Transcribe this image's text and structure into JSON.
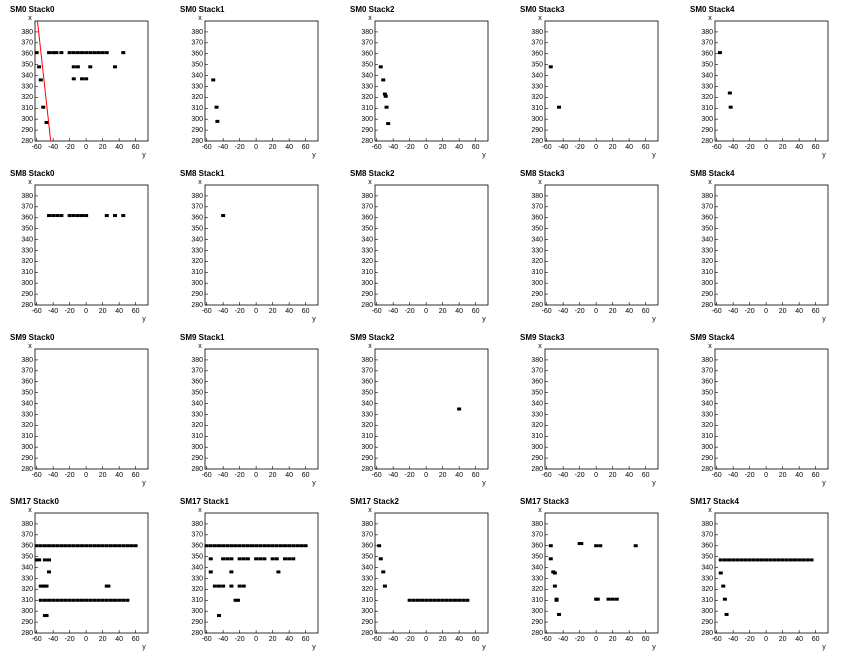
{
  "chart_data": [
    {
      "type": "scatter",
      "title": "SM0 Stack0",
      "x_label": "y",
      "y_label": "x",
      "xlim": [
        -62,
        75
      ],
      "ylim": [
        280,
        390
      ],
      "xticks": [
        -60,
        -40,
        -20,
        0,
        20,
        40,
        60
      ],
      "yticks": [
        280,
        290,
        300,
        310,
        320,
        330,
        340,
        350,
        360,
        370,
        380
      ],
      "color": "#000000",
      "x": [
        -60,
        -45,
        -40,
        -36,
        -30,
        -20,
        -15,
        -10,
        -5,
        0,
        5,
        10,
        15,
        20,
        25,
        45,
        -57,
        -15,
        -10,
        5,
        35,
        -55,
        -15,
        -5,
        0,
        -52,
        -48
      ],
      "values": [
        361,
        361,
        361,
        361,
        361,
        361,
        361,
        361,
        361,
        361,
        361,
        361,
        361,
        361,
        361,
        361,
        348,
        348,
        348,
        348,
        348,
        336,
        337,
        337,
        337,
        311,
        297
      ],
      "fit_line": {
        "x": [
          -59,
          -43
        ],
        "values": [
          390,
          280
        ],
        "color": "#ff0000"
      }
    },
    {
      "type": "scatter",
      "title": "SM0 Stack1",
      "x_label": "y",
      "y_label": "x",
      "xlim": [
        -62,
        75
      ],
      "ylim": [
        280,
        390
      ],
      "xticks": [
        -60,
        -40,
        -20,
        0,
        20,
        40,
        60
      ],
      "yticks": [
        280,
        290,
        300,
        310,
        320,
        330,
        340,
        350,
        360,
        370,
        380
      ],
      "color": "#000000",
      "x": [
        -52,
        -48,
        -47
      ],
      "values": [
        336,
        311,
        298
      ]
    },
    {
      "type": "scatter",
      "title": "SM0 Stack2",
      "x_label": "y",
      "y_label": "x",
      "xlim": [
        -62,
        75
      ],
      "ylim": [
        280,
        390
      ],
      "xticks": [
        -60,
        -40,
        -20,
        0,
        20,
        40,
        60
      ],
      "yticks": [
        280,
        290,
        300,
        310,
        320,
        330,
        340,
        350,
        360,
        370,
        380
      ],
      "color": "#000000",
      "x": [
        -55,
        -52,
        -50,
        -49,
        -48,
        -46
      ],
      "values": [
        348,
        336,
        323,
        321,
        311,
        296
      ]
    },
    {
      "type": "scatter",
      "title": "SM0 Stack3",
      "x_label": "y",
      "y_label": "x",
      "xlim": [
        -62,
        75
      ],
      "ylim": [
        280,
        390
      ],
      "xticks": [
        -60,
        -40,
        -20,
        0,
        20,
        40,
        60
      ],
      "yticks": [
        280,
        290,
        300,
        310,
        320,
        330,
        340,
        350,
        360,
        370,
        380
      ],
      "color": "#000000",
      "x": [
        -55,
        -45
      ],
      "values": [
        348,
        311
      ]
    },
    {
      "type": "scatter",
      "title": "SM0 Stack4",
      "x_label": "y",
      "y_label": "x",
      "xlim": [
        -62,
        75
      ],
      "ylim": [
        280,
        390
      ],
      "xticks": [
        -60,
        -40,
        -20,
        0,
        20,
        40,
        60
      ],
      "yticks": [
        280,
        290,
        300,
        310,
        320,
        330,
        340,
        350,
        360,
        370,
        380
      ],
      "color": "#000000",
      "x": [
        -56,
        -44,
        -43
      ],
      "values": [
        361,
        324,
        311
      ]
    },
    {
      "type": "scatter",
      "title": "SM8 Stack0",
      "x_label": "y",
      "y_label": "x",
      "xlim": [
        -62,
        75
      ],
      "ylim": [
        280,
        390
      ],
      "xticks": [
        -60,
        -40,
        -20,
        0,
        20,
        40,
        60
      ],
      "yticks": [
        280,
        290,
        300,
        310,
        320,
        330,
        340,
        350,
        360,
        370,
        380
      ],
      "color": "#000000",
      "x": [
        -45,
        -40,
        -35,
        -30,
        -20,
        -15,
        -10,
        -5,
        0,
        25,
        35,
        45
      ],
      "values": [
        362,
        362,
        362,
        362,
        362,
        362,
        362,
        362,
        362,
        362,
        362,
        362
      ]
    },
    {
      "type": "scatter",
      "title": "SM8 Stack1",
      "x_label": "y",
      "y_label": "x",
      "xlim": [
        -62,
        75
      ],
      "ylim": [
        280,
        390
      ],
      "xticks": [
        -60,
        -40,
        -20,
        0,
        20,
        40,
        60
      ],
      "yticks": [
        280,
        290,
        300,
        310,
        320,
        330,
        340,
        350,
        360,
        370,
        380
      ],
      "color": "#000000",
      "x": [
        -40
      ],
      "values": [
        362
      ]
    },
    {
      "type": "scatter",
      "title": "SM8 Stack2",
      "x_label": "y",
      "y_label": "x",
      "xlim": [
        -62,
        75
      ],
      "ylim": [
        280,
        390
      ],
      "xticks": [
        -60,
        -40,
        -20,
        0,
        20,
        40,
        60
      ],
      "yticks": [
        280,
        290,
        300,
        310,
        320,
        330,
        340,
        350,
        360,
        370,
        380
      ],
      "color": "#000000",
      "x": [],
      "values": []
    },
    {
      "type": "scatter",
      "title": "SM8 Stack3",
      "x_label": "y",
      "y_label": "x",
      "xlim": [
        -62,
        75
      ],
      "ylim": [
        280,
        390
      ],
      "xticks": [
        -60,
        -40,
        -20,
        0,
        20,
        40,
        60
      ],
      "yticks": [
        280,
        290,
        300,
        310,
        320,
        330,
        340,
        350,
        360,
        370,
        380
      ],
      "color": "#000000",
      "x": [],
      "values": []
    },
    {
      "type": "scatter",
      "title": "SM8 Stack4",
      "x_label": "y",
      "y_label": "x",
      "xlim": [
        -62,
        75
      ],
      "ylim": [
        280,
        390
      ],
      "xticks": [
        -60,
        -40,
        -20,
        0,
        20,
        40,
        60
      ],
      "yticks": [
        280,
        290,
        300,
        310,
        320,
        330,
        340,
        350,
        360,
        370,
        380
      ],
      "color": "#000000",
      "x": [],
      "values": []
    },
    {
      "type": "scatter",
      "title": "SM9 Stack0",
      "x_label": "y",
      "y_label": "x",
      "xlim": [
        -62,
        75
      ],
      "ylim": [
        280,
        390
      ],
      "xticks": [
        -60,
        -40,
        -20,
        0,
        20,
        40,
        60
      ],
      "yticks": [
        280,
        290,
        300,
        310,
        320,
        330,
        340,
        350,
        360,
        370,
        380
      ],
      "color": "#000000",
      "x": [],
      "values": []
    },
    {
      "type": "scatter",
      "title": "SM9 Stack1",
      "x_label": "y",
      "y_label": "x",
      "xlim": [
        -62,
        75
      ],
      "ylim": [
        280,
        390
      ],
      "xticks": [
        -60,
        -40,
        -20,
        0,
        20,
        40,
        60
      ],
      "yticks": [
        280,
        290,
        300,
        310,
        320,
        330,
        340,
        350,
        360,
        370,
        380
      ],
      "color": "#000000",
      "x": [],
      "values": []
    },
    {
      "type": "scatter",
      "title": "SM9 Stack2",
      "x_label": "y",
      "y_label": "x",
      "xlim": [
        -62,
        75
      ],
      "ylim": [
        280,
        390
      ],
      "xticks": [
        -60,
        -40,
        -20,
        0,
        20,
        40,
        60
      ],
      "yticks": [
        280,
        290,
        300,
        310,
        320,
        330,
        340,
        350,
        360,
        370,
        380
      ],
      "color": "#000000",
      "x": [
        40
      ],
      "values": [
        335
      ]
    },
    {
      "type": "scatter",
      "title": "SM9 Stack3",
      "x_label": "y",
      "y_label": "x",
      "xlim": [
        -62,
        75
      ],
      "ylim": [
        280,
        390
      ],
      "xticks": [
        -60,
        -40,
        -20,
        0,
        20,
        40,
        60
      ],
      "yticks": [
        280,
        290,
        300,
        310,
        320,
        330,
        340,
        350,
        360,
        370,
        380
      ],
      "color": "#000000",
      "x": [],
      "values": []
    },
    {
      "type": "scatter",
      "title": "SM9 Stack4",
      "x_label": "y",
      "y_label": "x",
      "xlim": [
        -62,
        75
      ],
      "ylim": [
        280,
        390
      ],
      "xticks": [
        -60,
        -40,
        -20,
        0,
        20,
        40,
        60
      ],
      "yticks": [
        280,
        290,
        300,
        310,
        320,
        330,
        340,
        350,
        360,
        370,
        380
      ],
      "color": "#000000",
      "x": [],
      "values": []
    },
    {
      "type": "scatter",
      "title": "SM17 Stack0",
      "x_label": "y",
      "y_label": "x",
      "xlim": [
        -62,
        75
      ],
      "ylim": [
        280,
        390
      ],
      "xticks": [
        -60,
        -40,
        -20,
        0,
        20,
        40,
        60
      ],
      "yticks": [
        280,
        290,
        300,
        310,
        320,
        330,
        340,
        350,
        360,
        370,
        380
      ],
      "color": "#000000",
      "x": [
        -60,
        -55,
        -50,
        -45,
        -40,
        -35,
        -30,
        -25,
        -20,
        -15,
        -10,
        -5,
        0,
        5,
        10,
        15,
        20,
        25,
        30,
        35,
        40,
        45,
        50,
        55,
        60,
        -60,
        -57,
        -50,
        -45,
        -45,
        -55,
        -52,
        -50,
        -48,
        25,
        27,
        -55,
        -50,
        -45,
        -40,
        -35,
        -30,
        -25,
        -20,
        -15,
        -10,
        -5,
        0,
        5,
        10,
        15,
        20,
        25,
        30,
        35,
        40,
        45,
        50,
        -50,
        -48
      ],
      "values": [
        360,
        360,
        360,
        360,
        360,
        360,
        360,
        360,
        360,
        360,
        360,
        360,
        360,
        360,
        360,
        360,
        360,
        360,
        360,
        360,
        360,
        360,
        360,
        360,
        360,
        347,
        347,
        347,
        347,
        336,
        323,
        323,
        323,
        323,
        323,
        323,
        310,
        310,
        310,
        310,
        310,
        310,
        310,
        310,
        310,
        310,
        310,
        310,
        310,
        310,
        310,
        310,
        310,
        310,
        310,
        310,
        310,
        310,
        296,
        296
      ]
    },
    {
      "type": "scatter",
      "title": "SM17 Stack1",
      "x_label": "y",
      "y_label": "x",
      "xlim": [
        -62,
        75
      ],
      "ylim": [
        280,
        390
      ],
      "xticks": [
        -60,
        -40,
        -20,
        0,
        20,
        40,
        60
      ],
      "yticks": [
        280,
        290,
        300,
        310,
        320,
        330,
        340,
        350,
        360,
        370,
        380
      ],
      "color": "#000000",
      "x": [
        -60,
        -55,
        -50,
        -45,
        -40,
        -35,
        -30,
        -25,
        -20,
        -15,
        -10,
        -5,
        0,
        5,
        10,
        15,
        20,
        25,
        30,
        35,
        40,
        45,
        50,
        55,
        60,
        -55,
        -40,
        -35,
        -30,
        -20,
        -15,
        -10,
        0,
        5,
        10,
        20,
        25,
        35,
        40,
        45,
        -55,
        -30,
        27,
        -50,
        -45,
        -40,
        -30,
        -20,
        -15,
        -25,
        -22,
        -45
      ],
      "values": [
        360,
        360,
        360,
        360,
        360,
        360,
        360,
        360,
        360,
        360,
        360,
        360,
        360,
        360,
        360,
        360,
        360,
        360,
        360,
        360,
        360,
        360,
        360,
        360,
        360,
        348,
        348,
        348,
        348,
        348,
        348,
        348,
        348,
        348,
        348,
        348,
        348,
        348,
        348,
        348,
        336,
        336,
        336,
        323,
        323,
        323,
        323,
        323,
        323,
        310,
        310,
        296
      ]
    },
    {
      "type": "scatter",
      "title": "SM17 Stack2",
      "x_label": "y",
      "y_label": "x",
      "xlim": [
        -62,
        75
      ],
      "ylim": [
        280,
        390
      ],
      "xticks": [
        -60,
        -40,
        -20,
        0,
        20,
        40,
        60
      ],
      "yticks": [
        280,
        290,
        300,
        310,
        320,
        330,
        340,
        350,
        360,
        370,
        380
      ],
      "color": "#000000",
      "x": [
        -57,
        -55,
        -52,
        -50,
        -20,
        -15,
        -10,
        -5,
        0,
        5,
        10,
        15,
        20,
        25,
        30,
        35,
        40,
        45,
        50
      ],
      "values": [
        360,
        348,
        336,
        323,
        310,
        310,
        310,
        310,
        310,
        310,
        310,
        310,
        310,
        310,
        310,
        310,
        310,
        310,
        310
      ]
    },
    {
      "type": "scatter",
      "title": "SM17 Stack3",
      "x_label": "y",
      "y_label": "x",
      "xlim": [
        -62,
        75
      ],
      "ylim": [
        280,
        390
      ],
      "xticks": [
        -60,
        -40,
        -20,
        0,
        20,
        40,
        60
      ],
      "yticks": [
        280,
        290,
        300,
        310,
        320,
        330,
        340,
        350,
        360,
        370,
        380
      ],
      "color": "#000000",
      "x": [
        -55,
        -20,
        -18,
        0,
        5,
        48,
        -55,
        -52,
        -50,
        -50,
        -48,
        -48,
        -45,
        0,
        2,
        15,
        20,
        25
      ],
      "values": [
        360,
        362,
        362,
        360,
        360,
        360,
        348,
        336,
        335,
        323,
        311,
        310,
        297,
        311,
        311,
        311,
        311,
        311
      ]
    },
    {
      "type": "scatter",
      "title": "SM17 Stack4",
      "x_label": "y",
      "y_label": "x",
      "xlim": [
        -62,
        75
      ],
      "ylim": [
        280,
        390
      ],
      "xticks": [
        -60,
        -40,
        -20,
        0,
        20,
        40,
        60
      ],
      "yticks": [
        280,
        290,
        300,
        310,
        320,
        330,
        340,
        350,
        360,
        370,
        380
      ],
      "color": "#000000",
      "x": [
        -55,
        -50,
        -45,
        -40,
        -35,
        -30,
        -25,
        -20,
        -15,
        -10,
        -5,
        0,
        5,
        10,
        15,
        20,
        25,
        30,
        35,
        40,
        45,
        50,
        55,
        -55,
        -52,
        -50,
        -48
      ],
      "values": [
        347,
        347,
        347,
        347,
        347,
        347,
        347,
        347,
        347,
        347,
        347,
        347,
        347,
        347,
        347,
        347,
        347,
        347,
        347,
        347,
        347,
        347,
        347,
        335,
        323,
        311,
        297
      ]
    }
  ]
}
